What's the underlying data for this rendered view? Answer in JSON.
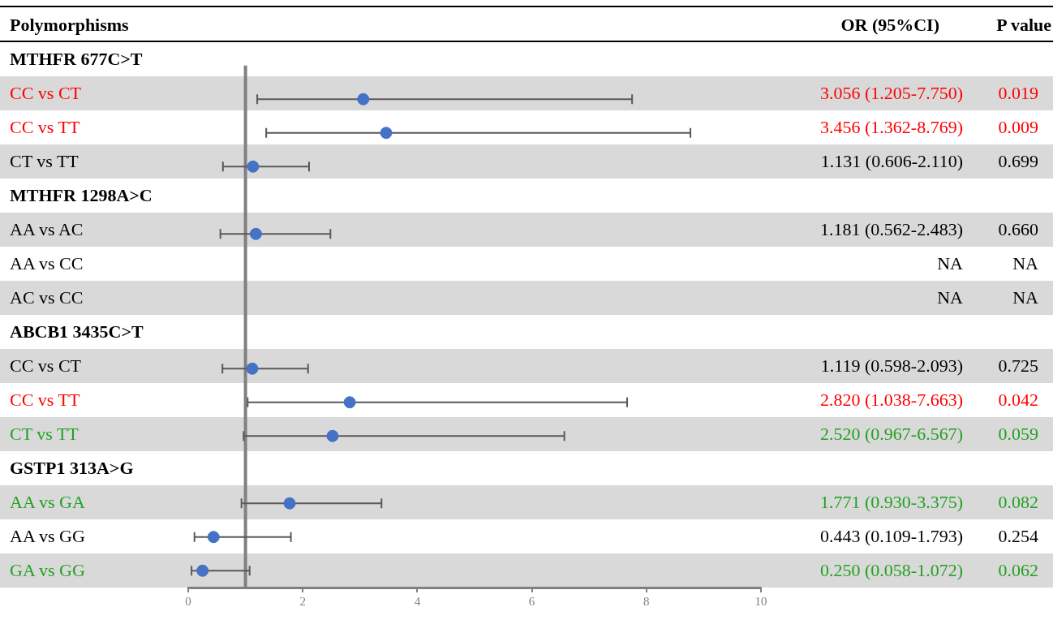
{
  "chart_data": [
    {
      "type": "scatter",
      "ylabel": "Polymorphisms",
      "annotations": [
        "OR (95%CI)"
      ],
      "categories": [
        "MTHFR 677C>T",
        "CC vs CT",
        "CC vs TT",
        "CT vs TT",
        "MTHFR 1298A>C",
        "AA vs AC",
        "AA vs CC",
        "AC vs CC",
        "ABCB1 3435C>T",
        "CC vs CT",
        "CC vs TT",
        "CT vs TT",
        "GSTP1 313A>G",
        "AA vs GA",
        "AA vs GG",
        "GA vs GG"
      ],
      "values": [
        null,
        3.056,
        3.456,
        1.131,
        null,
        1.181,
        null,
        null,
        null,
        1.119,
        2.82,
        2.52,
        null,
        1.771,
        0.443,
        0.25
      ],
      "errors": [
        null,
        [
          1.205,
          7.75
        ],
        [
          1.362,
          8.769
        ],
        [
          0.606,
          2.11
        ],
        null,
        [
          0.562,
          2.483
        ],
        null,
        null,
        null,
        [
          0.598,
          2.093
        ],
        [
          1.038,
          7.663
        ],
        [
          0.967,
          6.567
        ],
        null,
        [
          0.93,
          3.375
        ],
        [
          0.109,
          1.793
        ],
        [
          0.058,
          1.072
        ]
      ],
      "value_labels": [
        null,
        "3.056 (1.205-7.750)",
        "3.456 (1.362-8.769)",
        "1.131 (0.606-2.110)",
        null,
        "1.181 (0.562-2.483)",
        "NA",
        "NA",
        null,
        "1.119 (0.598-2.093)",
        "2.820 (1.038-7.663)",
        "2.520 (0.967-6.567)",
        null,
        "1.771 (0.930-3.375)",
        "0.443 (0.109-1.793)",
        "0.250 (0.058-1.072)"
      ],
      "color": "#4472c4",
      "marker": "circle",
      "grid": false,
      "orientation": "horizontal",
      "xlim": [
        0,
        10
      ],
      "xticks": [
        0,
        2,
        4,
        6,
        8,
        10
      ],
      "ref_lines": [
        {
          "axis": "x",
          "value": 1,
          "color": "#808080"
        }
      ]
    },
    {
      "type": "other",
      "title": "P value",
      "values": [
        null,
        0.019,
        0.009,
        0.699,
        null,
        0.66,
        null,
        null,
        null,
        0.725,
        0.042,
        0.059,
        null,
        0.082,
        0.254,
        0.062
      ],
      "value_labels": [
        null,
        "0.019",
        "0.009",
        "0.699",
        null,
        "0.660",
        "NA",
        "NA",
        null,
        "0.725",
        "0.042",
        "0.059",
        null,
        "0.082",
        "0.254",
        "0.062"
      ],
      "colors": [
        null,
        "#ff0000",
        "#ff0000",
        "#000000",
        null,
        "#000000",
        "#000000",
        "#000000",
        null,
        "#000000",
        "#ff0000",
        "#21a121",
        null,
        "#21a121",
        "#000000",
        "#21a121"
      ]
    }
  ]
}
